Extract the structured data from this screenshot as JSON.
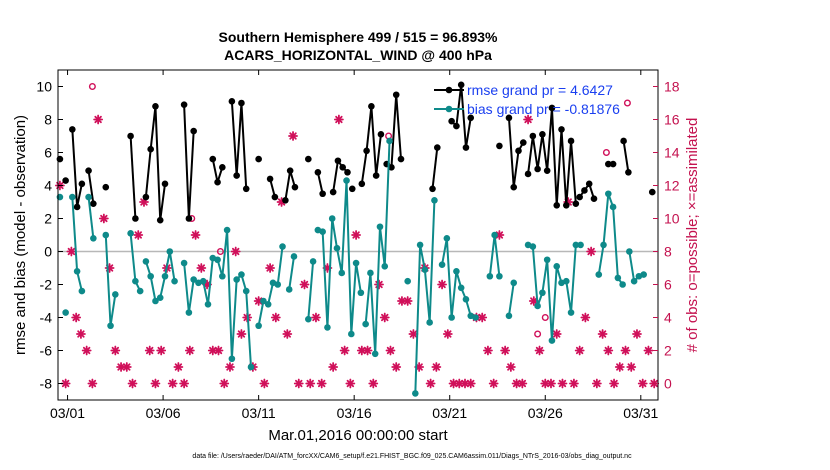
{
  "chart_data": {
    "type": "line",
    "title": "Southern Hemisphere 499 / 515 = 96.893%",
    "subtitle": "ACARS_HORIZONTAL_WIND @ 400 hPa",
    "xlabel": "Mar.01,2016 00:00:00 start",
    "ylabel_left": "rmse and bias (model - observation)",
    "ylabel_right": "# of obs: o=possible; ×=assimilated",
    "footnote": "data file: /Users/raeder/DAI/ATM_forcXX/CAM6_setup/f.e21.FHIST_BGC.f09_025.CAM6assim.011/Diags_NTrS_2016-03/obs_diag_output.nc",
    "xlim": [
      0.5,
      31.9
    ],
    "ylim_left": [
      -9,
      11
    ],
    "ylim_right": [
      -1,
      19
    ],
    "x_tick_values": [
      1,
      6,
      11,
      16,
      21,
      26,
      31
    ],
    "x_tick_labels": [
      "03/01",
      "03/06",
      "03/11",
      "03/16",
      "03/21",
      "03/26",
      "03/31"
    ],
    "y_left_ticks": [
      "-8",
      "-6",
      "-4",
      "-2",
      "0",
      "2",
      "4",
      "6",
      "8",
      "10"
    ],
    "y_right_ticks": [
      "0",
      "2",
      "4",
      "6",
      "8",
      "10",
      "12",
      "14",
      "16",
      "18"
    ],
    "colors": {
      "rmse": "#000000",
      "bias": "#0e8a8a",
      "obs": "#d0105a",
      "right_axis": "#c4124f",
      "legend_text": "#1a3ff0",
      "zero_line": "#b8b8b8"
    },
    "series": [
      {
        "name": "rmse grand pr = 4.6427",
        "segments": [
          {
            "x": [
              0.6
            ],
            "y": [
              5.6
            ]
          },
          {
            "x": [
              0.9
            ],
            "y": [
              4.3
            ]
          },
          {
            "x": [
              1.25,
              1.5,
              1.75
            ],
            "y": [
              7.4,
              2.7,
              4.1
            ]
          },
          {
            "x": [
              2.1,
              2.35
            ],
            "y": [
              4.9,
              2.9
            ]
          },
          {
            "x": [
              3.0
            ],
            "y": [
              3.9
            ]
          },
          {
            "x": [
              4.3,
              4.55
            ],
            "y": [
              7.0,
              2.0
            ]
          },
          {
            "x": [
              5.1,
              5.35,
              5.6,
              5.85,
              6.1
            ],
            "y": [
              3.3,
              6.2,
              8.8,
              1.9,
              4.1
            ]
          },
          {
            "x": [
              7.1,
              7.35,
              7.6
            ],
            "y": [
              8.9,
              2.0,
              7.3
            ]
          },
          {
            "x": [
              8.6,
              8.85,
              9.1
            ],
            "y": [
              5.6,
              4.2,
              5.1
            ]
          },
          {
            "x": [
              9.6,
              9.85,
              10.1,
              10.35
            ],
            "y": [
              9.1,
              4.6,
              9.0,
              3.8
            ]
          },
          {
            "x": [
              11.0
            ],
            "y": [
              5.6
            ]
          },
          {
            "x": [
              11.6,
              11.85
            ],
            "y": [
              4.4,
              3.3
            ]
          },
          {
            "x": [
              12.4,
              12.65,
              12.9
            ],
            "y": [
              3.1,
              4.9,
              3.9
            ]
          },
          {
            "x": [
              13.6
            ],
            "y": [
              5.6
            ]
          },
          {
            "x": [
              14.1,
              14.35
            ],
            "y": [
              4.8,
              3.5
            ]
          },
          {
            "x": [
              14.9,
              15.15,
              15.4,
              15.65
            ],
            "y": [
              3.6,
              5.5,
              5.1,
              4.8
            ]
          },
          {
            "x": [
              15.9
            ],
            "y": [
              3.8
            ]
          },
          {
            "x": [
              16.4,
              16.65,
              16.9,
              17.15,
              17.4
            ],
            "y": [
              4.1,
              6.1,
              8.8,
              4.6,
              7.1
            ]
          },
          {
            "x": [
              17.7,
              17.95,
              18.2,
              18.45
            ],
            "y": [
              5.3,
              5.1,
              9.5,
              5.6
            ]
          },
          {
            "x": [
              20.1,
              20.35
            ],
            "y": [
              3.8,
              6.3
            ]
          },
          {
            "x": [
              21.1,
              21.35,
              21.6,
              21.85,
              22.1
            ],
            "y": [
              7.9,
              7.6,
              10.1,
              6.3,
              8.1
            ]
          },
          {
            "x": [
              23.6
            ],
            "y": [
              6.4
            ]
          },
          {
            "x": [
              24.1,
              24.35,
              24.6,
              24.85
            ],
            "y": [
              8.1,
              3.9,
              6.1,
              6.6
            ]
          },
          {
            "x": [
              25.1,
              25.35,
              25.6,
              25.85,
              26.1,
              26.35,
              26.6,
              26.85,
              27.1,
              27.35,
              27.6
            ],
            "y": [
              4.7,
              7.0,
              5.0,
              7.1,
              4.9,
              8.7,
              2.8,
              7.4,
              2.8,
              6.7,
              2.9
            ]
          },
          {
            "x": [
              27.8,
              28.05,
              28.3,
              28.55
            ],
            "y": [
              3.3,
              3.7,
              4.1,
              3.2
            ]
          },
          {
            "x": [
              29.3,
              29.55
            ],
            "y": [
              5.3,
              5.3
            ]
          },
          {
            "x": [
              30.1,
              30.35
            ],
            "y": [
              6.7,
              4.8
            ]
          },
          {
            "x": [
              31.6
            ],
            "y": [
              3.6
            ]
          }
        ]
      },
      {
        "name": "bias grand pr = -0.81876",
        "segments": [
          {
            "x": [
              0.6
            ],
            "y": [
              3.3
            ]
          },
          {
            "x": [
              0.9
            ],
            "y": [
              -3.7
            ]
          },
          {
            "x": [
              1.25,
              1.5,
              1.75
            ],
            "y": [
              3.3,
              -1.2,
              -2.4
            ]
          },
          {
            "x": [
              2.1,
              2.35
            ],
            "y": [
              3.3,
              0.8
            ]
          },
          {
            "x": [
              3.0,
              3.25,
              3.5
            ],
            "y": [
              1.0,
              -4.5,
              -2.6
            ]
          },
          {
            "x": [
              4.3,
              4.55,
              4.8
            ],
            "y": [
              1.1,
              -1.8,
              -2.4
            ]
          },
          {
            "x": [
              5.1,
              5.35,
              5.6,
              5.85,
              6.1,
              6.35,
              6.6
            ],
            "y": [
              -0.6,
              -1.5,
              -3.0,
              -2.8,
              -1.5,
              0.0,
              -1.8
            ]
          },
          {
            "x": [
              7.1,
              7.35,
              7.6,
              7.85,
              8.1,
              8.35,
              8.6
            ],
            "y": [
              -0.7,
              -3.7,
              -1.7,
              -1.9,
              -1.8,
              -3.2,
              -0.4
            ]
          },
          {
            "x": [
              8.85,
              9.1,
              9.35,
              9.6,
              9.85,
              10.1,
              10.35,
              10.6
            ],
            "y": [
              -0.5,
              -1.5,
              1.3,
              -6.5,
              -1.7,
              -1.4,
              -2.4,
              -7.0
            ]
          },
          {
            "x": [
              11.0,
              11.25,
              11.5,
              11.75,
              12.0,
              12.25
            ],
            "y": [
              -4.5,
              -3.0,
              -3.2,
              -1.9,
              -2.0,
              0.3
            ]
          },
          {
            "x": [
              12.6,
              12.85
            ],
            "y": [
              -2.3,
              -0.3
            ]
          },
          {
            "x": [
              13.6,
              13.85
            ],
            "y": [
              -4.1,
              -0.6
            ]
          },
          {
            "x": [
              14.1,
              14.35,
              14.6,
              14.85,
              15.1,
              15.35,
              15.6,
              15.85,
              16.1,
              16.35
            ],
            "y": [
              1.3,
              1.2,
              -4.6,
              2.0,
              0.2,
              -1.3,
              4.3,
              -5.0,
              -0.7,
              -2.5
            ]
          },
          {
            "x": [
              16.6,
              16.85,
              17.1,
              17.35,
              17.6,
              17.85
            ],
            "y": [
              -4.4,
              -1.3,
              -6.2,
              1.5,
              -0.9,
              6.7
            ]
          },
          {
            "x": [
              18.8
            ],
            "y": [
              -1.8
            ]
          },
          {
            "x": [
              19.2,
              19.45,
              19.7,
              19.95,
              20.2
            ],
            "y": [
              -8.6,
              0.4,
              -1.1,
              -4.3,
              3.1
            ]
          },
          {
            "x": [
              20.6,
              20.85,
              21.1,
              21.35,
              21.6,
              21.85,
              22.1,
              22.35
            ],
            "y": [
              -0.8,
              0.8,
              -4.0,
              -1.2,
              -2.2,
              -2.9,
              -3.9,
              -4.0
            ]
          },
          {
            "x": [
              23.1,
              23.35,
              23.6
            ],
            "y": [
              -1.5,
              1.0,
              -1.5
            ]
          },
          {
            "x": [
              24.1,
              24.35
            ],
            "y": [
              -3.9,
              -1.9
            ]
          },
          {
            "x": [
              25.1,
              25.35,
              25.6,
              25.85,
              26.1,
              26.35,
              26.6,
              26.85,
              27.1,
              27.35,
              27.6,
              27.85
            ],
            "y": [
              0.4,
              0.3,
              -3.3,
              -2.5,
              -0.5,
              -5.4,
              -0.9,
              -1.9,
              -1.8,
              -3.7,
              0.4,
              0.4
            ]
          },
          {
            "x": [
              28.8,
              29.05,
              29.3,
              29.55,
              29.8,
              30.05
            ],
            "y": [
              -1.4,
              0.4,
              3.5,
              2.7,
              -1.6,
              -2.0
            ]
          },
          {
            "x": [
              30.4,
              30.65,
              30.9,
              31.15
            ],
            "y": [
              0.0,
              -1.8,
              -1.5,
              -1.4
            ]
          }
        ]
      }
    ],
    "obs_assimilated": {
      "name": "assimilated",
      "x": [
        0.6,
        0.9,
        1.2,
        1.45,
        1.7,
        2.0,
        2.3,
        2.6,
        2.9,
        3.2,
        3.5,
        3.8,
        4.1,
        4.4,
        4.7,
        5.0,
        5.3,
        5.6,
        5.9,
        6.2,
        6.5,
        6.8,
        7.1,
        7.4,
        7.7,
        8.0,
        8.3,
        8.6,
        8.9,
        9.2,
        9.5,
        9.8,
        10.1,
        10.4,
        10.7,
        11.0,
        11.3,
        11.6,
        11.9,
        12.2,
        12.5,
        12.8,
        13.1,
        13.4,
        13.7,
        14.0,
        14.3,
        14.6,
        14.9,
        15.2,
        15.5,
        15.8,
        16.1,
        16.4,
        16.7,
        17.0,
        17.3,
        17.6,
        17.9,
        18.2,
        18.5,
        18.8,
        19.1,
        19.4,
        19.7,
        20.0,
        20.3,
        20.6,
        20.9,
        21.2,
        21.5,
        21.8,
        22.1,
        22.4,
        22.7,
        23.0,
        23.3,
        23.6,
        23.9,
        24.2,
        24.5,
        24.8,
        25.1,
        25.4,
        25.7,
        26.0,
        26.3,
        26.6,
        26.9,
        27.2,
        27.5,
        27.8,
        28.1,
        28.4,
        28.7,
        29.0,
        29.3,
        29.6,
        29.9,
        30.2,
        30.5,
        30.8,
        31.1,
        31.4,
        31.7
      ],
      "y": [
        12,
        0,
        8,
        4,
        3,
        2,
        0,
        16,
        10,
        7,
        2,
        1,
        1,
        0,
        9,
        11,
        2,
        0,
        2,
        7,
        0,
        1,
        0,
        2,
        9,
        7,
        6,
        2,
        2,
        0,
        1,
        8,
        3,
        4,
        1,
        5,
        0,
        7,
        4,
        11,
        3,
        15,
        0,
        6,
        0,
        4,
        0,
        7,
        1,
        16,
        2,
        0,
        9,
        2,
        2,
        0,
        6,
        4,
        2,
        1,
        5,
        5,
        3,
        1,
        7,
        0,
        1,
        6,
        3,
        0,
        0,
        0,
        0,
        4,
        4,
        2,
        0,
        9,
        2,
        1,
        0,
        0,
        16,
        5,
        2,
        0,
        0,
        3,
        0,
        11,
        0,
        2,
        4,
        8,
        0,
        3,
        2,
        0,
        1,
        2,
        1,
        3,
        0,
        2,
        0
      ]
    },
    "obs_possible": {
      "name": "possible",
      "x": [
        2.3,
        7.5,
        9.0,
        17.8,
        25.6,
        26.0,
        29.2,
        30.3
      ],
      "y": [
        18,
        10,
        8,
        15,
        3,
        4,
        14,
        17
      ]
    }
  }
}
